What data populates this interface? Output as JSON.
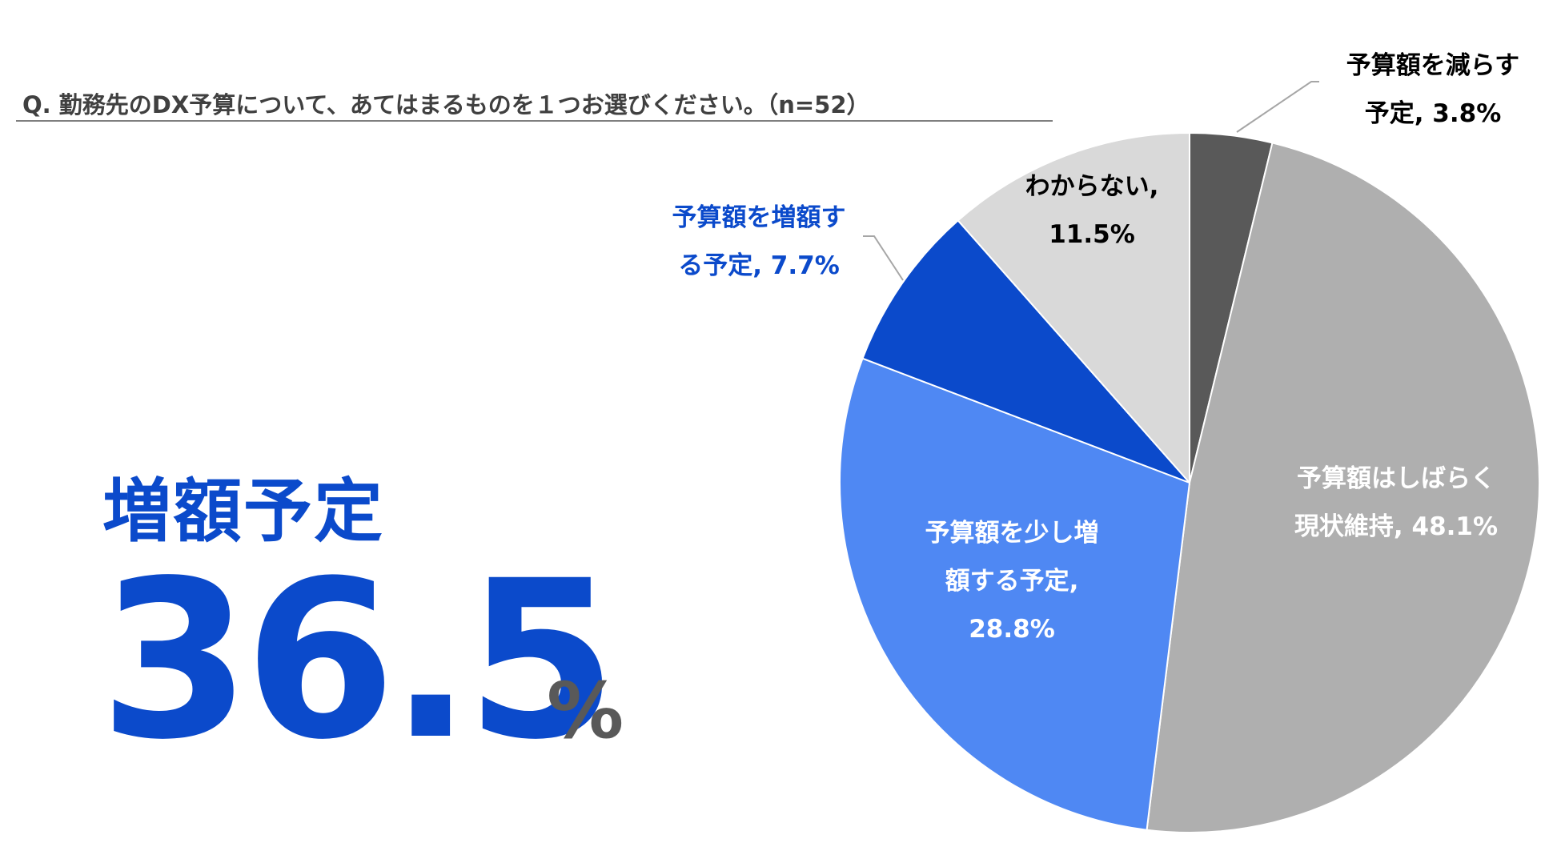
{
  "question": "Q. 勤務先のDX予算について、あてはまるものを１つお選びください。（n=52）",
  "headline": {
    "label": "増額予定",
    "value": "36.5",
    "unit": "%"
  },
  "chart_data": {
    "type": "pie",
    "start_angle_deg": 0,
    "direction": "clockwise",
    "slices": [
      {
        "key": "decrease",
        "label_lines": [
          "予算額を減らす",
          "予定, 3.8%"
        ],
        "value": 3.8,
        "color": "#595959",
        "label_color": "#000000"
      },
      {
        "key": "same",
        "label_lines": [
          "予算額はしばらく",
          "現状維持, 48.1%"
        ],
        "value": 48.1,
        "color": "#afafaf",
        "label_color": "#ffffff"
      },
      {
        "key": "slight-increase",
        "label_lines": [
          "予算額を少し増",
          "額する予定,",
          "28.8%"
        ],
        "value": 28.8,
        "color": "#4f88f3",
        "label_color": "#ffffff"
      },
      {
        "key": "increase",
        "label_lines": [
          "予算額を増額す",
          "る予定, 7.7%"
        ],
        "value": 7.7,
        "color": "#0b4acb",
        "label_color": "#0b4acb"
      },
      {
        "key": "dont-know",
        "label_lines": [
          "わからない,",
          "11.5%"
        ],
        "value": 11.5,
        "color": "#d9d9d9",
        "label_color": "#000000"
      }
    ]
  }
}
